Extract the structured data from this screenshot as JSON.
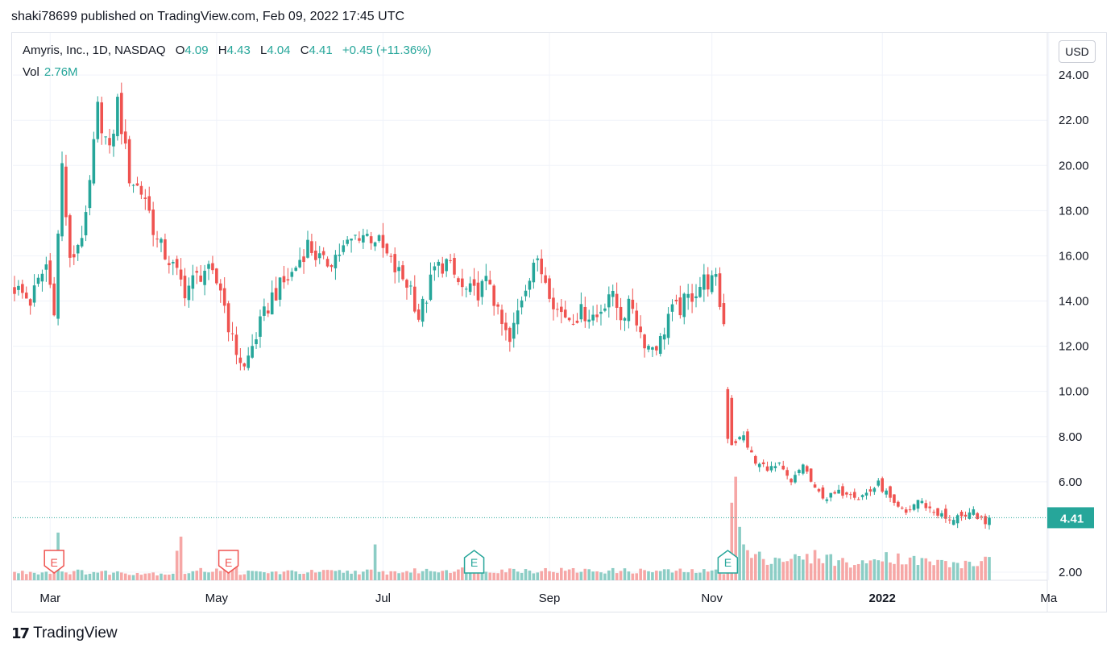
{
  "published": "shaki78699 published on TradingView.com, Feb 09, 2022 17:45 UTC",
  "legend": {
    "symbol": "Amyris, Inc., 1D, NASDAQ",
    "o_label": "O",
    "o": "4.09",
    "h_label": "H",
    "h": "4.43",
    "l_label": "L",
    "l": "4.04",
    "c_label": "C",
    "c": "4.41",
    "change": "+0.45 (+11.36%)",
    "vol_label": "Vol",
    "vol": "2.76M"
  },
  "currency": "USD",
  "last_price": "4.41",
  "brand": "TradingView",
  "colors": {
    "up": "#26a69a",
    "down": "#ef5350",
    "vol_up": "#8ccdc5",
    "vol_down": "#f6a7a6"
  },
  "chart_data": {
    "type": "candlestick",
    "title": "",
    "ylim": [
      1.6,
      25.2
    ],
    "y_ticks": [
      "24.00",
      "22.00",
      "20.00",
      "18.00",
      "16.00",
      "14.00",
      "12.00",
      "10.00",
      "8.00",
      "6.00",
      "2.00"
    ],
    "x_ticks": [
      {
        "label": "Mar",
        "index": 9
      },
      {
        "label": "May",
        "index": 51
      },
      {
        "label": "Jul",
        "index": 93
      },
      {
        "label": "Sep",
        "index": 135
      },
      {
        "label": "Nov",
        "index": 176
      },
      {
        "label": "2022",
        "index": 219
      },
      {
        "label": "Ma",
        "index": 261
      }
    ],
    "earnings": [
      {
        "label": "E",
        "index": 10,
        "kind": "past"
      },
      {
        "label": "E",
        "index": 54,
        "kind": "past"
      },
      {
        "label": "E",
        "index": 116,
        "kind": "past"
      },
      {
        "label": "E",
        "index": 180,
        "kind": "past"
      }
    ],
    "close_anchors": [
      [
        0,
        14.6
      ],
      [
        4,
        14.0
      ],
      [
        8,
        15.6
      ],
      [
        10,
        13.8
      ],
      [
        12,
        20.0
      ],
      [
        14,
        15.6
      ],
      [
        18,
        17.5
      ],
      [
        21,
        22.5
      ],
      [
        24,
        20.5
      ],
      [
        26,
        22.8
      ],
      [
        29,
        19.5
      ],
      [
        33,
        18.6
      ],
      [
        36,
        16.6
      ],
      [
        39,
        15.8
      ],
      [
        43,
        14.5
      ],
      [
        48,
        15.4
      ],
      [
        52,
        14.6
      ],
      [
        55,
        12.2
      ],
      [
        58,
        11.0
      ],
      [
        61,
        12.5
      ],
      [
        65,
        14.2
      ],
      [
        70,
        15.2
      ],
      [
        74,
        16.5
      ],
      [
        78,
        15.6
      ],
      [
        83,
        16.3
      ],
      [
        87,
        17.0
      ],
      [
        91,
        16.8
      ],
      [
        96,
        15.4
      ],
      [
        100,
        14.6
      ],
      [
        102,
        13.3
      ],
      [
        104,
        14.2
      ],
      [
        106,
        15.4
      ],
      [
        109,
        15.7
      ],
      [
        113,
        14.5
      ],
      [
        116,
        14.3
      ],
      [
        120,
        14.9
      ],
      [
        122,
        13.3
      ],
      [
        125,
        12.1
      ],
      [
        128,
        14.2
      ],
      [
        131,
        15.8
      ],
      [
        134,
        15.0
      ],
      [
        137,
        13.6
      ],
      [
        140,
        13.3
      ],
      [
        144,
        13.5
      ],
      [
        147,
        13.3
      ],
      [
        150,
        14.4
      ],
      [
        153,
        13.4
      ],
      [
        156,
        13.8
      ],
      [
        158,
        12.6
      ],
      [
        160,
        12.0
      ],
      [
        163,
        12.2
      ],
      [
        165,
        13.4
      ],
      [
        168,
        13.7
      ],
      [
        171,
        14.3
      ],
      [
        174,
        14.9
      ],
      [
        177,
        14.8
      ],
      [
        179,
        13.0
      ],
      [
        180,
        10.0
      ],
      [
        181,
        7.7
      ],
      [
        184,
        8.0
      ],
      [
        187,
        6.8
      ],
      [
        191,
        6.6
      ],
      [
        193,
        6.7
      ],
      [
        196,
        5.9
      ],
      [
        199,
        6.8
      ],
      [
        202,
        5.6
      ],
      [
        205,
        5.3
      ],
      [
        208,
        5.5
      ],
      [
        211,
        5.6
      ],
      [
        213,
        5.3
      ],
      [
        216,
        5.6
      ],
      [
        218,
        5.9
      ],
      [
        220,
        5.5
      ],
      [
        222,
        4.9
      ],
      [
        225,
        4.6
      ],
      [
        228,
        5.2
      ],
      [
        231,
        4.8
      ],
      [
        234,
        4.5
      ],
      [
        236,
        4.2
      ],
      [
        238,
        4.6
      ],
      [
        240,
        4.3
      ],
      [
        242,
        4.7
      ],
      [
        245,
        4.1
      ],
      [
        246,
        4.41
      ]
    ],
    "volume_anchors": [
      [
        0,
        0.8
      ],
      [
        10,
        0.9
      ],
      [
        11,
        6.1
      ],
      [
        12,
        0.9
      ],
      [
        40,
        0.7
      ],
      [
        41,
        3.7
      ],
      [
        42,
        3.7
      ],
      [
        43,
        0.8
      ],
      [
        56,
        1.4
      ],
      [
        57,
        0.8
      ],
      [
        90,
        0.9
      ],
      [
        91,
        3.1
      ],
      [
        92,
        0.8
      ],
      [
        110,
        1.1
      ],
      [
        180,
        0.9
      ],
      [
        181,
        10.5
      ],
      [
        182,
        9.0
      ],
      [
        183,
        5.5
      ],
      [
        184,
        3.6
      ],
      [
        186,
        2.4
      ],
      [
        200,
        2.2
      ],
      [
        203,
        2.6
      ],
      [
        210,
        1.8
      ],
      [
        215,
        1.6
      ],
      [
        218,
        3.0
      ],
      [
        221,
        2.4
      ],
      [
        228,
        2.0
      ],
      [
        235,
        1.8
      ],
      [
        240,
        1.6
      ],
      [
        244,
        1.8
      ],
      [
        246,
        2.76
      ]
    ]
  }
}
